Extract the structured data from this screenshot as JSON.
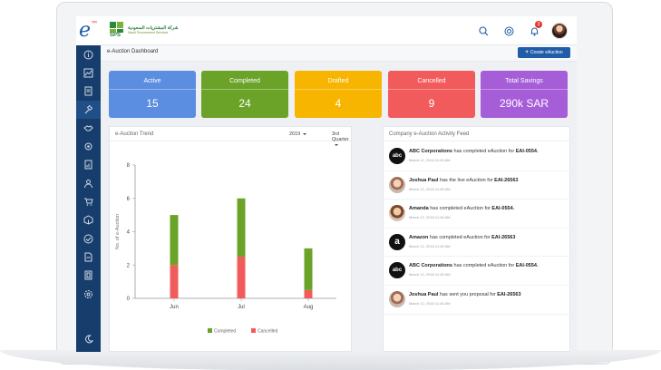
{
  "app": {
    "brand_letter": "e",
    "brand_superscript": "™",
    "logo_line1": "شركة المشتريات السعودية",
    "logo_line2": "Saudi Procurement Services",
    "logo_abbr": "SPS",
    "notification_count": "3"
  },
  "header": {
    "title": "e-Auction Dashboard",
    "create_button": "Create eAuction",
    "create_button_icon": "+"
  },
  "sidebar": {
    "items": [
      "info-icon",
      "chart-icon",
      "document-icon",
      "gavel-icon",
      "handshake-icon",
      "gear-wheel-icon",
      "report-icon",
      "user-icon",
      "cart-icon",
      "box-icon",
      "check-icon",
      "file-icon",
      "doc-lines-icon",
      "settings-icon"
    ],
    "bottom": "moon-icon"
  },
  "stats": [
    {
      "label": "Active",
      "value": "15",
      "color": "#5b8de0"
    },
    {
      "label": "Completed",
      "value": "24",
      "color": "#6aa327"
    },
    {
      "label": "Drafted",
      "value": "4",
      "color": "#f7b500"
    },
    {
      "label": "Cancelled",
      "value": "9",
      "color": "#f25b5b"
    },
    {
      "label": "Total Savings",
      "value": "290k SAR",
      "color": "#a55dd8"
    }
  ],
  "trend": {
    "title": "e-Auction Trend",
    "year": "2019",
    "quarter": "3rd Quarter"
  },
  "chart_data": {
    "type": "bar",
    "stacked": true,
    "categories": [
      "Jun",
      "Jul",
      "Aug"
    ],
    "series": [
      {
        "name": "Completed",
        "values": [
          3,
          3.5,
          2.5
        ],
        "color": "#6aa327"
      },
      {
        "name": "Cancelled",
        "values": [
          2,
          2.5,
          0.5
        ],
        "color": "#f25b5b"
      }
    ],
    "ylabel": "No. of e-Auction",
    "ylim": [
      0,
      8
    ],
    "yticks": [
      0,
      2,
      4,
      6,
      8
    ],
    "legend": "bottom"
  },
  "feed": {
    "title": "Company e-Auction Activity Feed",
    "items": [
      {
        "avatar": "abc",
        "avatar_text": "abc",
        "name": "ABC Corporations",
        "action": " has completed eAuction for ",
        "ref": "EAI-0554.",
        "time": "March 12, 2018  11:45 AM"
      },
      {
        "avatar": "person1",
        "avatar_text": "",
        "name": "Joshua Paul",
        "action": " has the live eAuction for ",
        "ref": "EAI-26563",
        "time": "March 12, 2018  11:45 AM"
      },
      {
        "avatar": "person2",
        "avatar_text": "",
        "name": "Amanda",
        "action": " has completed eAuction for ",
        "ref": "EAI-0554.",
        "time": "March 12, 2018  11:45 AM"
      },
      {
        "avatar": "amz",
        "avatar_text": "a",
        "name": "Amazon",
        "action": " has completed eAuction for ",
        "ref": "EAI-26563",
        "time": "March 12, 2018  11:45 AM"
      },
      {
        "avatar": "abc",
        "avatar_text": "abc",
        "name": "ABC Corporations",
        "action": " has completed eAuction for ",
        "ref": "EAI-0554.",
        "time": "March 12, 2018  11:45 AM"
      },
      {
        "avatar": "person1",
        "avatar_text": "",
        "name": "Joshua Paul",
        "action": " has sent you proposal for ",
        "ref": "EAI-26563",
        "time": "March 12, 2018  11:45 AM"
      }
    ]
  }
}
